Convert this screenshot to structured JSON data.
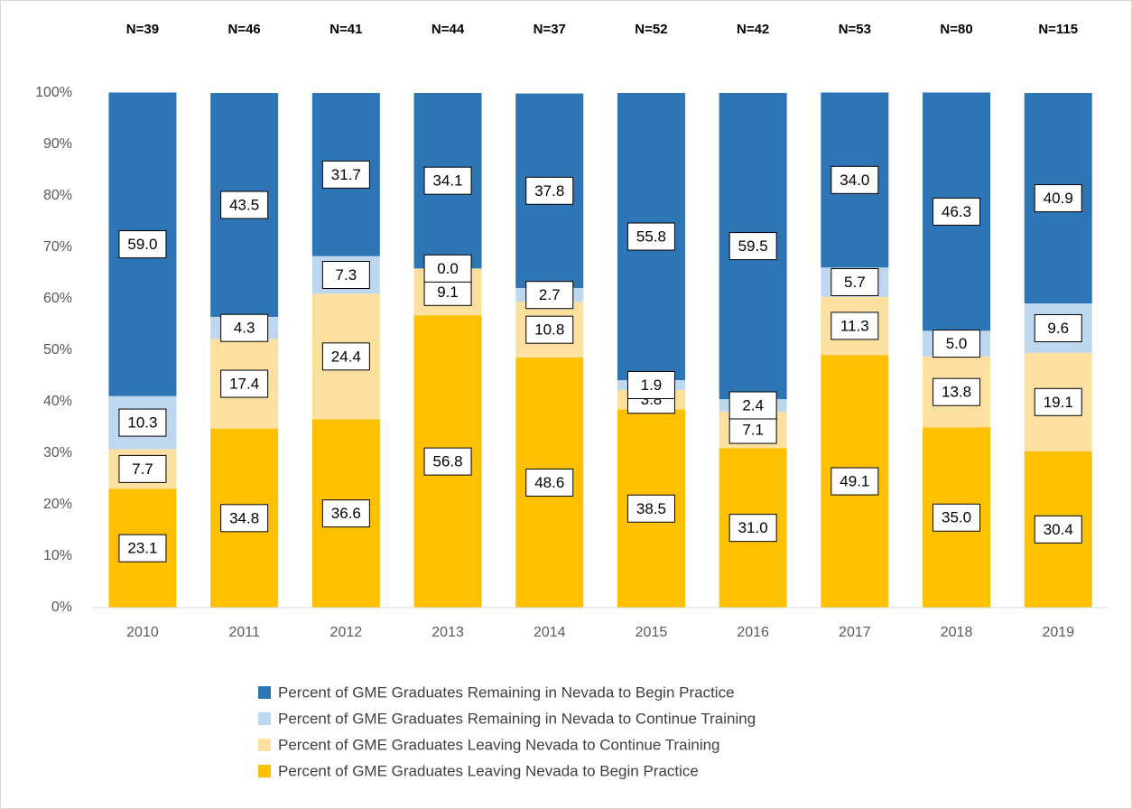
{
  "chart_data": {
    "type": "stacked_bar",
    "categories": [
      "2010",
      "2011",
      "2012",
      "2013",
      "2014",
      "2015",
      "2016",
      "2017",
      "2018",
      "2019"
    ],
    "annotations": [
      "N=39",
      "N=46",
      "N=41",
      "N=44",
      "N=37",
      "N=52",
      "N=42",
      "N=53",
      "N=80",
      "N=115"
    ],
    "series": [
      {
        "name": "Percent of GME Graduates Remaining in Nevada to Begin Practice",
        "color": "#2e75b6",
        "values": [
          59,
          43.5,
          31.7,
          34.1,
          37.8,
          55.8,
          59.5,
          34,
          46.3,
          40.9
        ],
        "value_labels": [
          "59.0",
          "43.5",
          "31.7",
          "34.1",
          "37.8",
          "55.8",
          "59.5",
          "34.0",
          "46.3",
          "40.9"
        ]
      },
      {
        "name": "Percent of GME Graduates Remaining in Nevada to Continue Training",
        "color": "#bdd7ee",
        "values": [
          10.3,
          4.3,
          7.3,
          0,
          2.7,
          1.9,
          2.4,
          5.7,
          5,
          9.6
        ],
        "value_labels": [
          "10.3",
          "4.3",
          "7.3",
          "0.0",
          "2.7",
          "1.9",
          "2.4",
          "5.7",
          "5.0",
          "9.6"
        ]
      },
      {
        "name": "Percent of GME Graduates Leaving Nevada to Continue Training",
        "color": "#fbe0a0",
        "values": [
          7.7,
          17.4,
          24.4,
          9.1,
          10.8,
          3.8,
          7.1,
          11.3,
          13.8,
          19.1
        ],
        "value_labels": [
          "7.7",
          "17.4",
          "24.4",
          "9.1",
          "10.8",
          "3.8",
          "7.1",
          "11.3",
          "13.8",
          "19.1"
        ]
      },
      {
        "name": "Percent of GME Graduates Leaving Nevada to Begin Practice",
        "color": "#ffc000",
        "values": [
          23.1,
          34.8,
          36.6,
          56.8,
          48.6,
          38.5,
          31,
          49.1,
          35,
          30.4
        ],
        "value_labels": [
          "23.1",
          "34.8",
          "36.6",
          "56.8",
          "48.6",
          "38.5",
          "31.0",
          "49.1",
          "35.0",
          "30.4"
        ]
      }
    ],
    "ylim": [
      0,
      100
    ],
    "yticks": [
      {
        "value": 0,
        "label": "0%"
      },
      {
        "value": 10,
        "label": "10%"
      },
      {
        "value": 20,
        "label": "20%"
      },
      {
        "value": 30,
        "label": "30%"
      },
      {
        "value": 40,
        "label": "40%"
      },
      {
        "value": 50,
        "label": "50%"
      },
      {
        "value": 60,
        "label": "60%"
      },
      {
        "value": 70,
        "label": "70%"
      },
      {
        "value": 80,
        "label": "80%"
      },
      {
        "value": 90,
        "label": "90%"
      },
      {
        "value": 100,
        "label": "100%"
      }
    ],
    "grid": false,
    "legend": "bottom"
  }
}
